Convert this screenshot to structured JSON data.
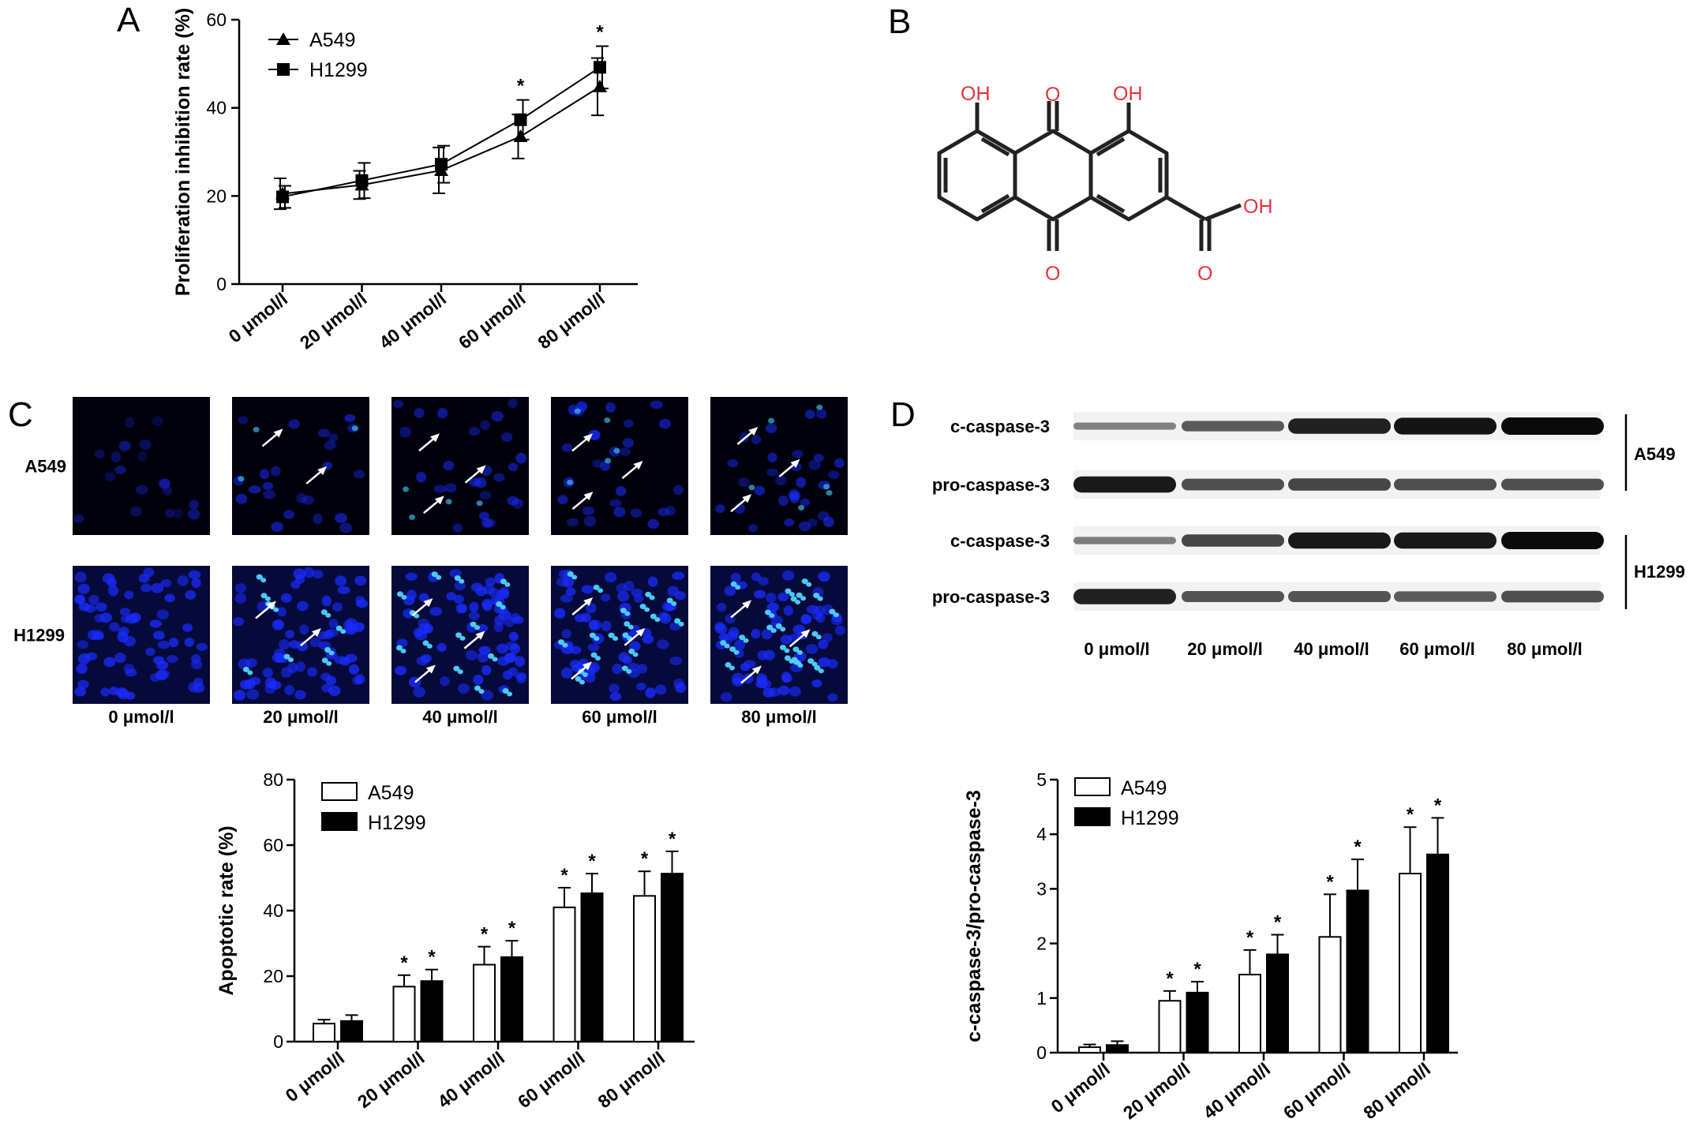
{
  "panels": {
    "A": "A",
    "B": "B",
    "C": "C",
    "D": "D"
  },
  "chart_data": [
    {
      "id": "A",
      "type": "line",
      "categories": [
        "0 μmol/l",
        "20 μmol/l",
        "40 μmol/l",
        "60 μmol/l",
        "80 μmol/l"
      ],
      "ylabel": "Proliferation inhibition rate (%)",
      "ylim": [
        0,
        60
      ],
      "yticks": [
        0,
        20,
        40,
        60
      ],
      "legend_position": "top-left",
      "series": [
        {
          "name": "A549",
          "marker": "triangle",
          "values": [
            20.5,
            22.5,
            25.8,
            33.5,
            44.8
          ],
          "errors": [
            3.5,
            3.2,
            5.2,
            5.0,
            6.5
          ]
        },
        {
          "name": "H1299",
          "marker": "square",
          "values": [
            19.8,
            23.5,
            27.2,
            37.3,
            49.2
          ],
          "errors": [
            2.5,
            4.0,
            4.2,
            4.5,
            4.8
          ]
        }
      ],
      "significance": [
        "",
        "",
        "",
        "*",
        "*"
      ]
    },
    {
      "id": "C",
      "type": "bar",
      "categories": [
        "0 μmol/l",
        "20 μmol/l",
        "40 μmol/l",
        "60 μmol/l",
        "80 μmol/l"
      ],
      "ylabel": "Apoptotic rate (%)",
      "ylim": [
        0,
        80
      ],
      "yticks": [
        0,
        20,
        40,
        60,
        80
      ],
      "legend_position": "top-left",
      "series": [
        {
          "name": "A549",
          "fill": "#ffffff",
          "values": [
            5.5,
            16.8,
            23.5,
            41.0,
            44.5
          ],
          "errors": [
            1.2,
            3.5,
            5.5,
            6.0,
            7.5
          ],
          "significance": [
            "",
            "*",
            "*",
            "*",
            "*"
          ]
        },
        {
          "name": "H1299",
          "fill": "#000000",
          "values": [
            6.3,
            18.5,
            25.8,
            45.3,
            51.3
          ],
          "errors": [
            1.8,
            3.5,
            5.0,
            6.0,
            6.8
          ],
          "significance": [
            "",
            "*",
            "*",
            "*",
            "*"
          ]
        }
      ]
    },
    {
      "id": "D",
      "type": "bar",
      "categories": [
        "0 μmol/l",
        "20 μmol/l",
        "40 μmol/l",
        "60 μmol/l",
        "80 μmol/l"
      ],
      "ylabel": "c-caspase-3/pro-caspase-3",
      "ylim": [
        0,
        5
      ],
      "yticks": [
        0,
        1,
        2,
        3,
        4,
        5
      ],
      "legend_position": "top-left",
      "series": [
        {
          "name": "A549",
          "fill": "#ffffff",
          "values": [
            0.1,
            0.95,
            1.43,
            2.12,
            3.28
          ],
          "errors": [
            0.05,
            0.18,
            0.45,
            0.78,
            0.85
          ],
          "significance": [
            "",
            "*",
            "*",
            "*",
            "*"
          ]
        },
        {
          "name": "H1299",
          "fill": "#000000",
          "values": [
            0.14,
            1.1,
            1.8,
            2.97,
            3.63
          ],
          "errors": [
            0.07,
            0.2,
            0.36,
            0.57,
            0.67
          ],
          "significance": [
            "",
            "*",
            "*",
            "*",
            "*"
          ]
        }
      ]
    }
  ],
  "molecule": {
    "labels": {
      "oh_left": "OH",
      "o_top": "O",
      "oh_right": "OH",
      "o_bottom": "O",
      "acid_oh": "OH",
      "acid_o": "O"
    },
    "color": "#e8323a"
  },
  "micrographs": {
    "rows": [
      "A549",
      "H1299"
    ],
    "columns": [
      "0 μmol/l",
      "20 μmol/l",
      "40 μmol/l",
      "60 μmol/l",
      "80 μmol/l"
    ],
    "stain_color": "#1a2cff"
  },
  "western_blot": {
    "rows": [
      "c-caspase-3",
      "pro-caspase-3",
      "c-caspase-3",
      "pro-caspase-3"
    ],
    "groups": [
      "A549",
      "H1299"
    ],
    "lanes": [
      "0 μmol/l",
      "20 μmol/l",
      "40 μmol/l",
      "60 μmol/l",
      "80 μmol/l"
    ],
    "band_intensity": [
      [
        0.18,
        0.45,
        0.85,
        0.95,
        1.0
      ],
      [
        0.9,
        0.55,
        0.6,
        0.55,
        0.55
      ],
      [
        0.2,
        0.6,
        0.9,
        0.9,
        1.0
      ],
      [
        0.85,
        0.5,
        0.5,
        0.45,
        0.55
      ]
    ]
  }
}
